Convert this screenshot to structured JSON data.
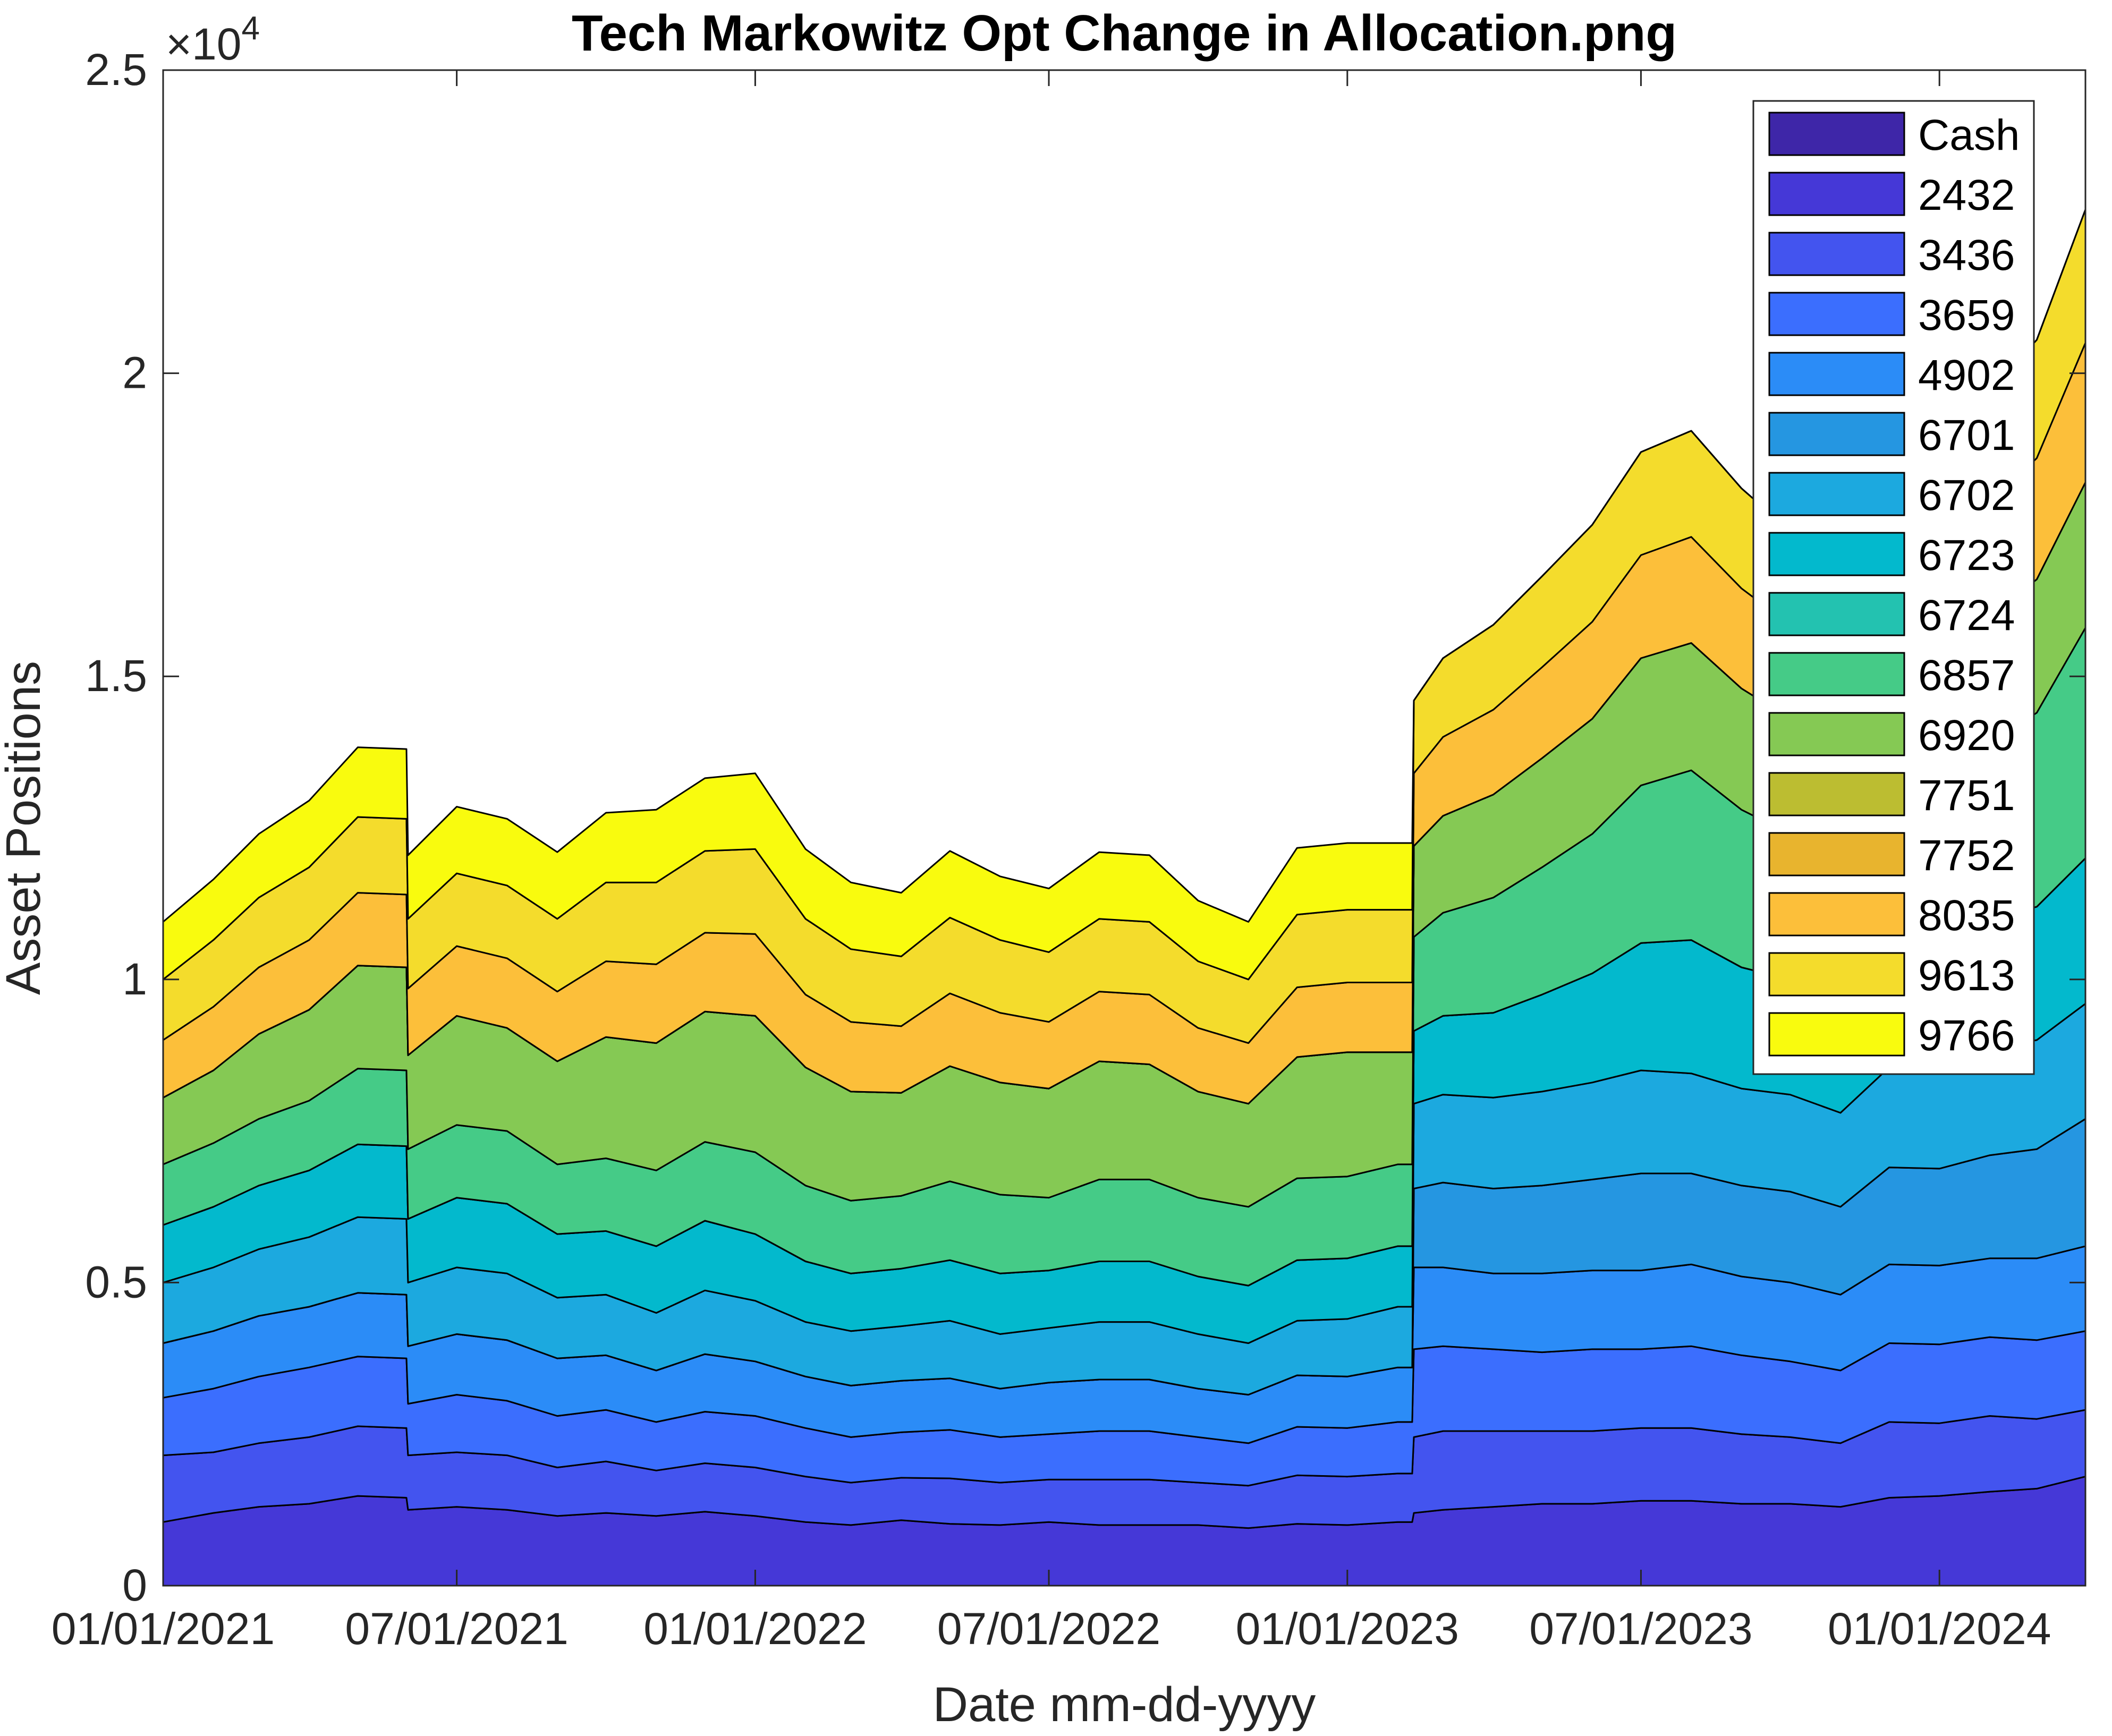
{
  "chart_data": {
    "type": "area",
    "stacked": true,
    "title": "Tech Markowitz Opt Change in Allocation.png",
    "xlabel": "Date mm-dd-yyyy",
    "ylabel": "Asset Positions",
    "exponent_label": "×10",
    "exponent_power": "4",
    "ylim": [
      0,
      25000
    ],
    "yticks": [
      0,
      5000,
      10000,
      15000,
      20000,
      25000
    ],
    "ytick_labels": [
      "0",
      "0.5",
      "1",
      "1.5",
      "2",
      "2.5"
    ],
    "xlim": [
      "2021-01-01",
      "2024-03-31"
    ],
    "xticks": [
      "2021-01-01",
      "2021-07-01",
      "2022-01-01",
      "2022-07-01",
      "2023-01-01",
      "2023-07-01",
      "2024-01-01"
    ],
    "xtick_labels": [
      "01/01/2021",
      "07/01/2021",
      "01/01/2022",
      "07/01/2022",
      "01/01/2023",
      "07/01/2023",
      "01/01/2024"
    ],
    "legend_position": "top-right",
    "grid": false,
    "x": [
      "2021-01-01",
      "2021-02-01",
      "2021-03-01",
      "2021-04-01",
      "2021-05-01",
      "2021-05-31",
      "2021-06-01",
      "2021-07-01",
      "2021-08-01",
      "2021-09-01",
      "2021-10-01",
      "2021-11-01",
      "2021-12-01",
      "2022-01-01",
      "2022-02-01",
      "2022-03-01",
      "2022-04-01",
      "2022-05-01",
      "2022-06-01",
      "2022-07-01",
      "2022-08-01",
      "2022-09-01",
      "2022-10-01",
      "2022-11-01",
      "2022-12-01",
      "2023-01-01",
      "2023-02-01",
      "2023-02-10",
      "2023-02-11",
      "2023-03-01",
      "2023-04-01",
      "2023-05-01",
      "2023-06-01",
      "2023-07-01",
      "2023-08-01",
      "2023-09-01",
      "2023-10-01",
      "2023-11-01",
      "2023-12-01",
      "2024-01-01",
      "2024-02-01",
      "2024-03-01",
      "2024-03-31"
    ],
    "series": [
      {
        "name": "Cash",
        "color": "#3e26a8",
        "values": [
          0,
          0,
          0,
          0,
          0,
          0,
          0,
          0,
          0,
          0,
          0,
          0,
          0,
          0,
          0,
          0,
          0,
          0,
          0,
          0,
          0,
          0,
          0,
          0,
          0,
          0,
          0,
          0,
          0,
          0,
          0,
          0,
          0,
          0,
          0,
          0,
          0,
          0,
          0,
          0,
          0,
          0,
          0
        ]
      },
      {
        "name": "2432",
        "color": "#4538d7",
        "values": [
          1050,
          1200,
          1300,
          1350,
          1480,
          1450,
          1250,
          1300,
          1250,
          1150,
          1200,
          1150,
          1220,
          1150,
          1050,
          1000,
          1080,
          1020,
          1000,
          1050,
          1000,
          1000,
          1000,
          950,
          1020,
          1000,
          1050,
          1050,
          1200,
          1250,
          1300,
          1350,
          1350,
          1400,
          1400,
          1350,
          1350,
          1300,
          1450,
          1480,
          1550,
          1600,
          1800
        ]
      },
      {
        "name": "3436",
        "color": "#4354ef",
        "values": [
          1100,
          1000,
          1050,
          1100,
          1150,
          1150,
          900,
          900,
          900,
          800,
          850,
          750,
          800,
          800,
          750,
          700,
          700,
          750,
          700,
          700,
          750,
          750,
          700,
          700,
          800,
          800,
          800,
          800,
          1250,
          1300,
          1250,
          1200,
          1200,
          1200,
          1200,
          1150,
          1100,
          1050,
          1250,
          1200,
          1250,
          1150,
          1100
        ]
      },
      {
        "name": "3659",
        "color": "#3b6efe",
        "values": [
          950,
          1050,
          1100,
          1150,
          1150,
          1150,
          850,
          950,
          900,
          850,
          850,
          800,
          850,
          850,
          800,
          750,
          750,
          800,
          750,
          750,
          800,
          800,
          750,
          700,
          800,
          800,
          850,
          850,
          1450,
          1400,
          1350,
          1300,
          1350,
          1300,
          1350,
          1300,
          1250,
          1200,
          1300,
          1300,
          1300,
          1300,
          1300
        ]
      },
      {
        "name": "4902",
        "color": "#2b8cf7",
        "values": [
          900,
          950,
          1000,
          1000,
          1050,
          1050,
          950,
          1000,
          1000,
          950,
          900,
          850,
          950,
          900,
          850,
          850,
          850,
          850,
          800,
          850,
          850,
          850,
          800,
          800,
          850,
          850,
          900,
          900,
          1350,
          1300,
          1250,
          1300,
          1300,
          1300,
          1350,
          1300,
          1300,
          1250,
          1300,
          1300,
          1300,
          1350,
          1400
        ]
      },
      {
        "name": "6701",
        "color": "#2596e1",
        "values": [
          0,
          0,
          0,
          0,
          0,
          0,
          0,
          0,
          0,
          0,
          0,
          0,
          0,
          0,
          0,
          0,
          0,
          0,
          0,
          0,
          0,
          0,
          0,
          0,
          0,
          0,
          0,
          0,
          1300,
          1400,
          1400,
          1450,
          1500,
          1600,
          1500,
          1500,
          1500,
          1450,
          1600,
          1600,
          1700,
          1800,
          2100
        ]
      },
      {
        "name": "6702",
        "color": "#1ca9df",
        "values": [
          1000,
          1050,
          1100,
          1150,
          1250,
          1250,
          1050,
          1100,
          1100,
          1000,
          1000,
          950,
          1050,
          1000,
          900,
          900,
          900,
          950,
          900,
          900,
          950,
          950,
          900,
          850,
          900,
          950,
          1000,
          1000,
          1400,
          1450,
          1500,
          1550,
          1600,
          1700,
          1650,
          1600,
          1600,
          1550,
          1650,
          1700,
          1750,
          1800,
          1900
        ]
      },
      {
        "name": "6723",
        "color": "#03b9cd",
        "values": [
          950,
          1000,
          1050,
          1100,
          1200,
          1200,
          1050,
          1150,
          1150,
          1050,
          1050,
          1100,
          1150,
          1100,
          1000,
          950,
          950,
          1000,
          1000,
          950,
          1000,
          1000,
          950,
          950,
          1000,
          1000,
          1000,
          1000,
          1200,
          1300,
          1400,
          1600,
          1800,
          2100,
          2200,
          2000,
          1900,
          1900,
          2000,
          2100,
          2150,
          2200,
          2400
        ]
      },
      {
        "name": "6724",
        "color": "#23c2b0",
        "values": [
          0,
          0,
          0,
          0,
          0,
          0,
          0,
          0,
          0,
          0,
          0,
          0,
          0,
          0,
          0,
          0,
          0,
          0,
          0,
          0,
          0,
          0,
          0,
          0,
          0,
          0,
          0,
          0,
          0,
          0,
          0,
          0,
          0,
          0,
          0,
          0,
          0,
          0,
          0,
          0,
          0,
          0,
          0
        ]
      },
      {
        "name": "6857",
        "color": "#45cb87",
        "values": [
          1000,
          1050,
          1100,
          1150,
          1250,
          1250,
          1150,
          1200,
          1200,
          1150,
          1200,
          1250,
          1300,
          1350,
          1250,
          1200,
          1200,
          1300,
          1300,
          1200,
          1350,
          1350,
          1300,
          1300,
          1350,
          1350,
          1350,
          1350,
          1550,
          1700,
          1900,
          2100,
          2300,
          2600,
          2800,
          2600,
          2400,
          2300,
          2500,
          2700,
          2900,
          3200,
          3800
        ]
      },
      {
        "name": "6920",
        "color": "#85c954",
        "values": [
          1100,
          1200,
          1400,
          1500,
          1700,
          1700,
          1550,
          1800,
          1700,
          1700,
          2000,
          2100,
          2150,
          2250,
          1950,
          1800,
          1700,
          1900,
          1850,
          1800,
          1950,
          1900,
          1750,
          1700,
          2000,
          2050,
          1850,
          1850,
          1500,
          1600,
          1700,
          1800,
          1900,
          2100,
          2100,
          2000,
          1900,
          1800,
          1900,
          2000,
          2100,
          2200,
          2400
        ]
      },
      {
        "name": "7751",
        "color": "#bcbd31",
        "values": [
          0,
          0,
          0,
          0,
          0,
          0,
          0,
          0,
          0,
          0,
          0,
          0,
          0,
          0,
          0,
          0,
          0,
          0,
          0,
          0,
          0,
          0,
          0,
          0,
          0,
          0,
          0,
          0,
          0,
          0,
          0,
          0,
          0,
          0,
          0,
          0,
          0,
          0,
          0,
          0,
          0,
          0,
          0
        ]
      },
      {
        "name": "7752",
        "color": "#e8b42e",
        "values": [
          0,
          0,
          0,
          0,
          0,
          0,
          0,
          0,
          0,
          0,
          0,
          0,
          0,
          0,
          0,
          0,
          0,
          0,
          0,
          0,
          0,
          0,
          0,
          0,
          0,
          0,
          0,
          0,
          0,
          0,
          0,
          0,
          0,
          0,
          0,
          0,
          0,
          0,
          0,
          0,
          0,
          0,
          0
        ]
      },
      {
        "name": "8035",
        "color": "#fcbf3a",
        "values": [
          950,
          1050,
          1100,
          1150,
          1200,
          1200,
          1100,
          1150,
          1150,
          1150,
          1250,
          1300,
          1300,
          1350,
          1200,
          1150,
          1100,
          1200,
          1150,
          1100,
          1150,
          1150,
          1050,
          1000,
          1150,
          1150,
          1150,
          1150,
          1200,
          1300,
          1400,
          1500,
          1600,
          1700,
          1750,
          1650,
          1550,
          1500,
          1650,
          1750,
          1850,
          2000,
          2300
        ]
      },
      {
        "name": "9613",
        "color": "#f4dc2c",
        "values": [
          1000,
          1100,
          1150,
          1200,
          1250,
          1250,
          1150,
          1200,
          1200,
          1200,
          1300,
          1350,
          1350,
          1400,
          1250,
          1200,
          1150,
          1250,
          1200,
          1150,
          1200,
          1200,
          1100,
          1050,
          1200,
          1200,
          1200,
          1200,
          1200,
          1300,
          1400,
          1500,
          1600,
          1700,
          1750,
          1650,
          1550,
          1500,
          1650,
          1750,
          1850,
          1950,
          2200
        ]
      },
      {
        "name": "9766",
        "color": "#f9fb0e",
        "values": [
          950,
          1000,
          1050,
          1100,
          1150,
          1150,
          1050,
          1100,
          1100,
          1100,
          1150,
          1200,
          1200,
          1250,
          1150,
          1100,
          1050,
          1100,
          1050,
          1050,
          1100,
          1100,
          1000,
          950,
          1100,
          1100,
          1100,
          1100,
          0,
          0,
          0,
          0,
          0,
          0,
          0,
          0,
          0,
          0,
          0,
          0,
          0,
          0,
          0
        ]
      }
    ]
  }
}
